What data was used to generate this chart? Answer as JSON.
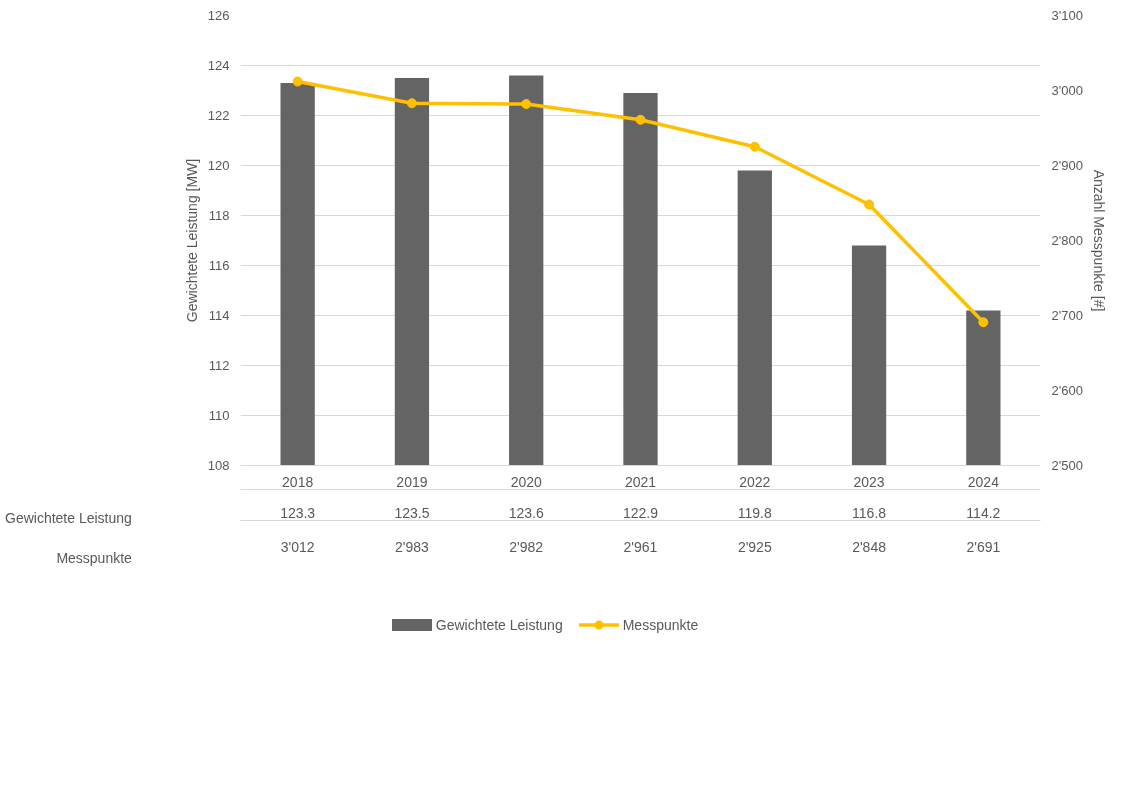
{
  "chart_data": {
    "type": "bar",
    "categories": [
      "2018",
      "2019",
      "2020",
      "2021",
      "2022",
      "2023",
      "2024"
    ],
    "series": [
      {
        "name": "Gewichtete Leistung",
        "color": "#646464",
        "values": [
          123.3,
          123.5,
          123.6,
          122.9,
          119.8,
          116.8,
          114.2
        ],
        "value_labels": [
          "123.3",
          "123.5",
          "123.6",
          "122.9",
          "119.8",
          "116.8",
          "114.2"
        ]
      },
      {
        "name": "Messpunkte",
        "type": "line",
        "axis": "y2",
        "color": "#ffc000",
        "marker": "circle",
        "values": [
          3012,
          2983,
          2982,
          2961,
          2925,
          2848,
          2691
        ],
        "value_labels": [
          "3'012",
          "2'983",
          "2'982",
          "2'961",
          "2'925",
          "2'848",
          "2'691"
        ]
      }
    ],
    "ylabel": "Gewichtete Leistung [MW]",
    "y2label": "Anzahl Messpunkte [#]",
    "ylim": [
      108,
      126
    ],
    "yticks": [
      108,
      110,
      112,
      114,
      116,
      118,
      120,
      122,
      124,
      126
    ],
    "y2lim": [
      2500,
      3100
    ],
    "y2ticks": [
      {
        "value": 2500,
        "label": "2'500"
      },
      {
        "value": 2600,
        "label": "2'600"
      },
      {
        "value": 2700,
        "label": "2'700"
      },
      {
        "value": 2800,
        "label": "2'800"
      },
      {
        "value": 2900,
        "label": "2'900"
      },
      {
        "value": 3000,
        "label": "3'000"
      },
      {
        "value": 3100,
        "label": "3'100"
      }
    ],
    "grid": "y",
    "legend": "bottom"
  }
}
